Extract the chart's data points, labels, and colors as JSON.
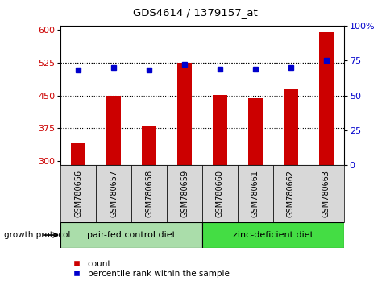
{
  "title": "GDS4614 / 1379157_at",
  "samples": [
    "GSM780656",
    "GSM780657",
    "GSM780658",
    "GSM780659",
    "GSM780660",
    "GSM780661",
    "GSM780662",
    "GSM780663"
  ],
  "counts": [
    340,
    450,
    380,
    525,
    452,
    443,
    465,
    595
  ],
  "percentiles": [
    68,
    70,
    68,
    72,
    69,
    69,
    70,
    75
  ],
  "ylim_left": [
    290,
    610
  ],
  "ylim_right": [
    0,
    100
  ],
  "yticks_left": [
    300,
    375,
    450,
    525,
    600
  ],
  "yticks_right": [
    0,
    25,
    50,
    75,
    100
  ],
  "bar_color": "#cc0000",
  "dot_color": "#0000cc",
  "group1_label": "pair-fed control diet",
  "group2_label": "zinc-deficient diet",
  "group1_indices": [
    0,
    1,
    2,
    3
  ],
  "group2_indices": [
    4,
    5,
    6,
    7
  ],
  "group1_color": "#aaddaa",
  "group2_color": "#44dd44",
  "growth_protocol_label": "growth protocol",
  "legend_count_label": "count",
  "legend_percentile_label": "percentile rank within the sample",
  "hline_style": "dotted",
  "tick_label_color_left": "#cc0000",
  "tick_label_color_right": "#0000cc",
  "xlabel_bg_color": "#d8d8d8",
  "bar_bottom": 290,
  "bar_width": 0.4
}
